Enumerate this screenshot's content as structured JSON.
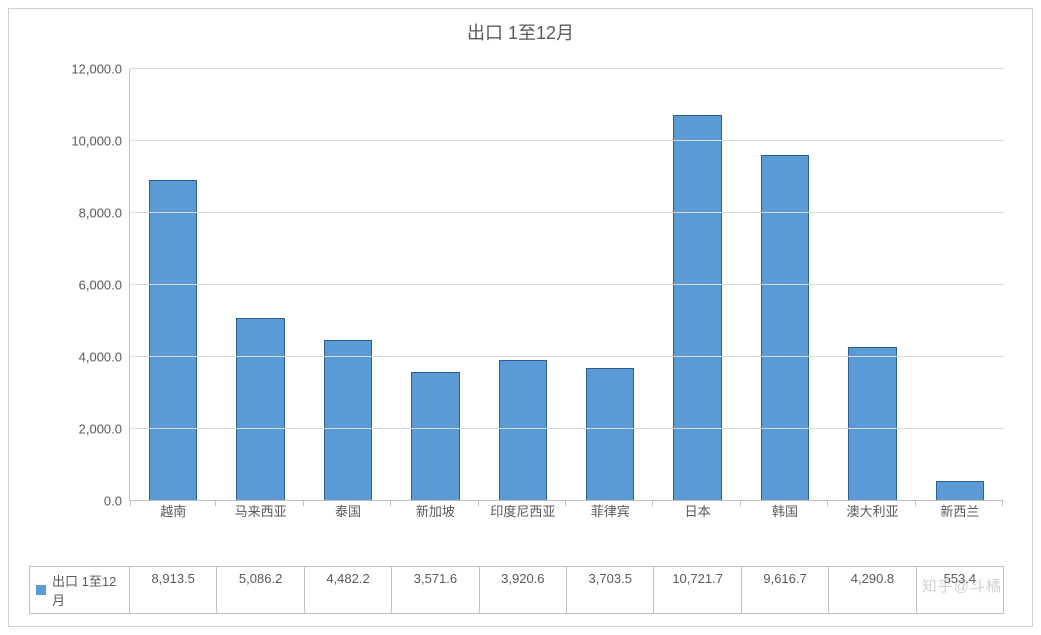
{
  "chart": {
    "type": "bar",
    "title": "出口 1至12月",
    "title_fontsize": 18,
    "title_color": "#595959",
    "series_name": "出口 1至12月",
    "categories": [
      "越南",
      "马来西亚",
      "泰国",
      "新加坡",
      "印度尼西亚",
      "菲律宾",
      "日本",
      "韩国",
      "澳大利亚",
      "新西兰"
    ],
    "values": [
      8913.5,
      5086.2,
      4482.2,
      3571.6,
      3920.6,
      3703.5,
      10721.7,
      9616.7,
      4290.8,
      553.4
    ],
    "value_labels": [
      "8,913.5",
      "5,086.2",
      "4,482.2",
      "3,571.6",
      "3,920.6",
      "3,703.5",
      "10,721.7",
      "9,616.7",
      "4,290.8",
      "553.4"
    ],
    "bar_color": "#5b9bd5",
    "bar_border_color": "#2f5f8f",
    "bar_width": 0.56,
    "ylim": [
      0,
      12000
    ],
    "ytick_step": 2000,
    "ytick_labels": [
      "0.0",
      "2,000.0",
      "4,000.0",
      "6,000.0",
      "8,000.0",
      "10,000.0",
      "12,000.0"
    ],
    "grid_color": "#d9d9d9",
    "axis_color": "#bfbfbf",
    "background_color": "#ffffff",
    "label_fontsize": 13,
    "label_color": "#595959",
    "legend_swatch_color": "#5b9bd5",
    "frame_border_color": "#cfcfcf"
  },
  "watermark": "知乎@斗橘"
}
